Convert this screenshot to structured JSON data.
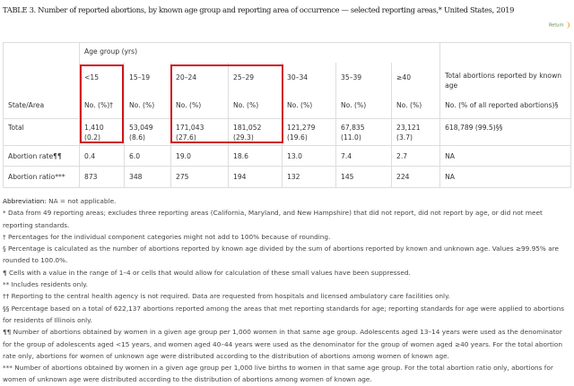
{
  "title": "TABLE 3. Number of reported abortions, by known age group and reporting area of occurrence — selected reporting areas,* United States, 2019",
  "return_label": "Return",
  "table": {
    "age_group_label": "Age group (yrs)",
    "age_groups": [
      "<15",
      "15–19",
      "20–24",
      "25–29",
      "30–34",
      "35–39",
      "≥40"
    ],
    "total_header": "Total abortions reported by known age",
    "state_area": "State/Area",
    "unit_headers": [
      "No. (%)†",
      "No. (%)",
      "No. (%)",
      "No. (%)",
      "No. (%)",
      "No. (%)",
      "No. (%)"
    ],
    "total_unit": "No. (% of all reported abortions)§",
    "rows": [
      {
        "label": "Total",
        "cells": [
          [
            "1,410",
            "(0.2)"
          ],
          [
            "53,049",
            "(8.6)"
          ],
          [
            "171,043",
            "(27.6)"
          ],
          [
            "181,052",
            "(29.3)"
          ],
          [
            "121,279",
            "(19.6)"
          ],
          [
            "67,835",
            "(11.0)"
          ],
          [
            "23,121",
            "(3.7)"
          ]
        ],
        "total": "618,789 (99.5)§§"
      },
      {
        "label": "Abortion rate¶¶",
        "cells": [
          [
            "0.4"
          ],
          [
            "6.0"
          ],
          [
            "19.0"
          ],
          [
            "18.6"
          ],
          [
            "13.0"
          ],
          [
            "7.4"
          ],
          [
            "2.7"
          ]
        ],
        "total": "NA"
      },
      {
        "label": "Abortion ratio***",
        "cells": [
          [
            "873"
          ],
          [
            "348"
          ],
          [
            "275"
          ],
          [
            "194"
          ],
          [
            "132"
          ],
          [
            "145"
          ],
          [
            "224"
          ]
        ],
        "total": "NA"
      }
    ]
  },
  "notes": {
    "abbr_label": "Abbreviation:",
    "abbr_text": " NA = not applicable.",
    "lines": [
      "* Data from 49 reporting areas; excludes three reporting areas (California, Maryland, and New Hampshire) that did not report, did not report by age, or did not meet reporting standards.",
      "† Percentages for the individual component categories might not add to 100% because of rounding.",
      "§ Percentage is calculated as the number of abortions reported by known age divided by the sum of abortions reported by known and unknown age. Values ≥99.95% are rounded to 100.0%.",
      "¶ Cells with a value in the range of 1–4 or cells that would allow for calculation of these small values have been suppressed.",
      "** Includes residents only.",
      "†† Reporting to the central health agency is not required. Data are requested from hospitals and licensed ambulatory care facilities only.",
      "§§ Percentage based on a total of 622,137 abortions reported among the areas that met reporting standards for age; reporting standards for age were applied to abortions for residents of Illinois only.",
      "¶¶ Number of abortions obtained by women in a given age group per 1,000 women in that same age group. Adolescents aged 13–14 years were used as the denominator for the group of adolescents aged <15 years, and women aged 40–44 years were used as the denominator for the group of women aged ≥40 years. For the total abortion rate only, abortions for women of unknown age were distributed according to the distribution of abortions among women of known age.",
      "*** Number of abortions obtained by women in a given age group per 1,000 live births to women in that same age group. For the total abortion ratio only, abortions for women of unknown age were distributed according to the distribution of abortions among women of known age."
    ]
  }
}
